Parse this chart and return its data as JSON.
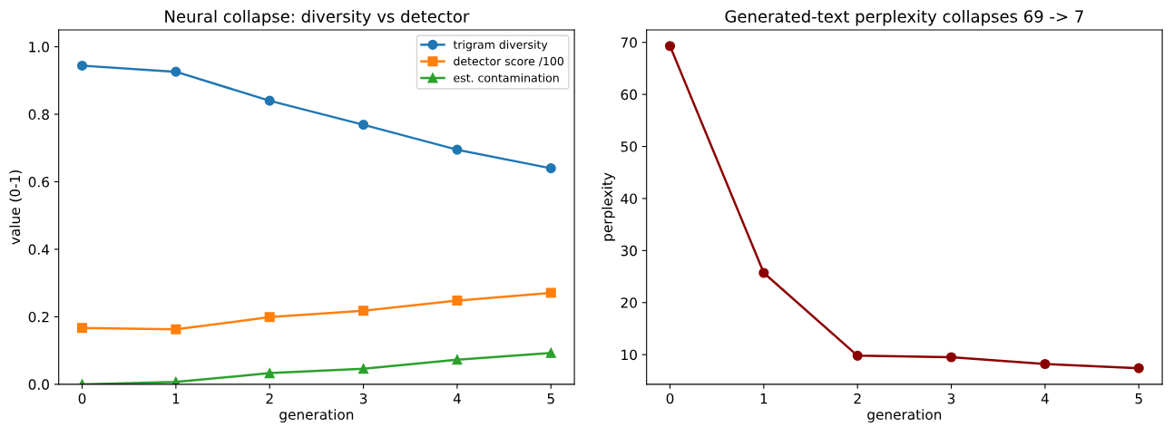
{
  "chart_data": [
    {
      "type": "line",
      "title": "Neural collapse: diversity vs detector",
      "xlabel": "generation",
      "ylabel": "value (0-1)",
      "x": [
        0,
        1,
        2,
        3,
        4,
        5
      ],
      "xlim": [
        -0.25,
        5.25
      ],
      "xticks": [
        0,
        1,
        2,
        3,
        4,
        5
      ],
      "ylim": [
        0,
        1.05
      ],
      "yticks": [
        {
          "value": 0,
          "label": "0.0"
        },
        0.2,
        0.4,
        0.6,
        0.8,
        {
          "value": 1,
          "label": "1.0"
        }
      ],
      "legend": "top right",
      "grid": false,
      "series": [
        {
          "name": "trigram diversity",
          "color": "#1f77b4",
          "marker": "circle",
          "values": [
            0.944,
            0.926,
            0.84,
            0.769,
            0.695,
            0.64
          ]
        },
        {
          "name": "detector score /100",
          "color": "#ff7f0e",
          "marker": "square",
          "values": [
            0.167,
            0.163,
            0.199,
            0.218,
            0.248,
            0.271
          ]
        },
        {
          "name": "est. contamination",
          "color": "#2ca02c",
          "marker": "triangle",
          "values": [
            0.0,
            0.007,
            0.033,
            0.046,
            0.073,
            0.093
          ]
        }
      ]
    },
    {
      "type": "line",
      "title": "Generated-text perplexity collapses 69 -> 7",
      "xlabel": "generation",
      "ylabel": "perplexity",
      "x": [
        0,
        1,
        2,
        3,
        4,
        5
      ],
      "xlim": [
        -0.25,
        5.25
      ],
      "xticks": [
        0,
        1,
        2,
        3,
        4,
        5
      ],
      "ylim": [
        4.3,
        72.4
      ],
      "yticks": [
        10,
        20,
        30,
        40,
        50,
        60,
        70
      ],
      "grid": false,
      "legend": false,
      "series": [
        {
          "color": "#8b0000",
          "marker": "circle",
          "values": [
            69.3,
            25.7,
            9.8,
            9.5,
            8.2,
            7.4
          ]
        }
      ]
    }
  ]
}
